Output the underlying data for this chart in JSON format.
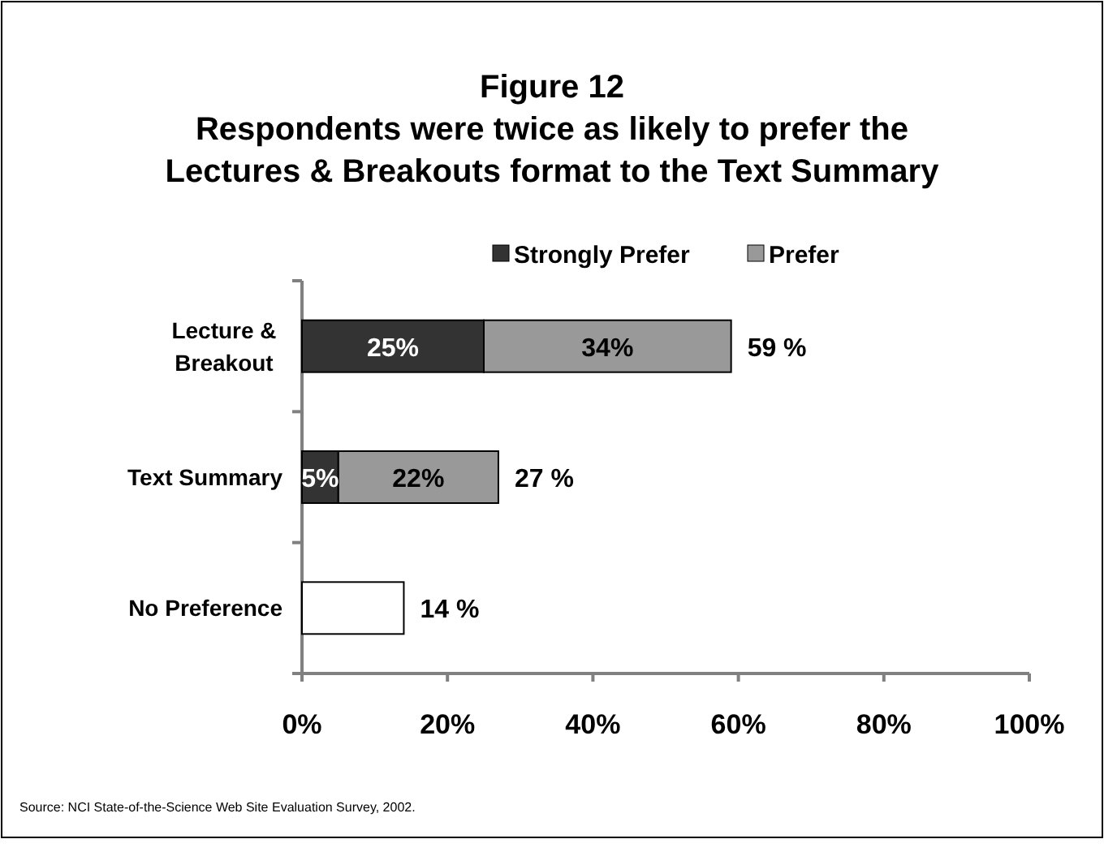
{
  "chart_data": {
    "type": "bar",
    "orientation": "horizontal",
    "stacked": true,
    "title": "Figure 12",
    "subtitle": "Respondents were twice as likely to prefer the Lectures & Breakouts format to the Text Summary",
    "categories": [
      "Lecture & Breakout",
      "Text Summary",
      "No Preference"
    ],
    "series": [
      {
        "name": "Strongly Prefer",
        "color": "#333333",
        "values": [
          25,
          5,
          null
        ],
        "value_labels": [
          "25%",
          "5%",
          null
        ]
      },
      {
        "name": "Prefer",
        "color": "#999999",
        "values": [
          34,
          22,
          null
        ],
        "value_labels": [
          "34%",
          "22%",
          null
        ]
      },
      {
        "color": "#ffffff",
        "values": [
          null,
          null,
          14
        ]
      }
    ],
    "totals": [
      "59 %",
      "27 %",
      "14 %"
    ],
    "xlim": [
      0,
      100
    ],
    "xticks": [
      {
        "value": 0,
        "label": "0%"
      },
      {
        "value": 20,
        "label": "20%"
      },
      {
        "value": 40,
        "label": "40%"
      },
      {
        "value": 60,
        "label": "60%"
      },
      {
        "value": 80,
        "label": "80%"
      },
      {
        "value": 100,
        "label": "100%"
      }
    ],
    "legend": "top",
    "grid": false,
    "annotations": [
      "Source: NCI State-of-the-Science Web Site Evaluation Survey, 2002."
    ]
  }
}
